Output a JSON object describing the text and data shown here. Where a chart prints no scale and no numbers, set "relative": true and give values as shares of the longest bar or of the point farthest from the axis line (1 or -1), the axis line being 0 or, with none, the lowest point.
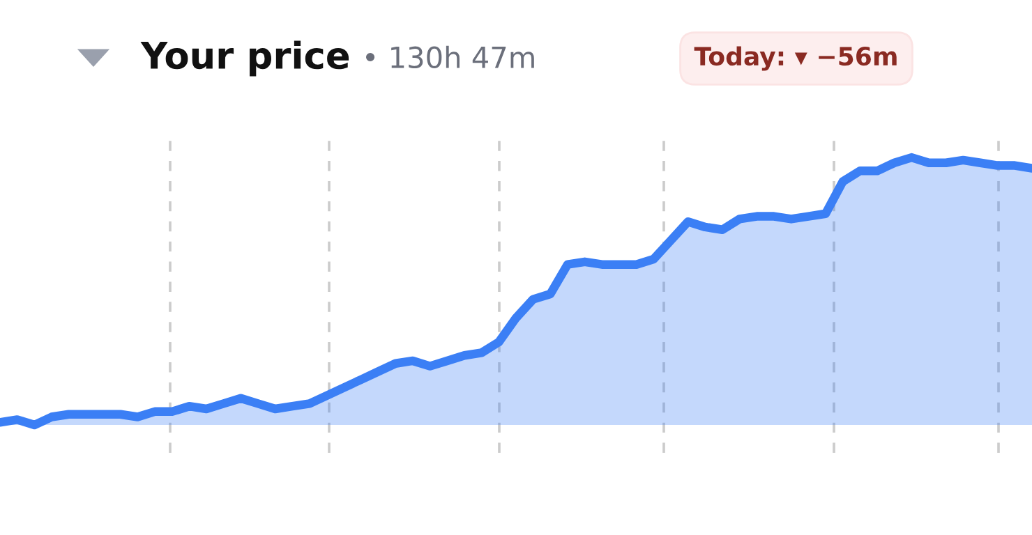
{
  "chart_data": {
    "type": "area",
    "title": "Your price",
    "subtitle": "• 130h 47m",
    "annotations": [
      "Today: ▾ −56m"
    ],
    "relative": true,
    "categories": [
      null,
      null,
      null,
      null,
      null,
      null,
      null,
      null,
      null,
      null,
      null,
      null,
      null,
      null,
      null,
      null,
      null,
      null,
      null,
      null,
      null,
      null,
      null,
      null,
      null,
      null,
      null,
      null,
      null,
      null,
      null,
      null,
      null,
      null,
      null,
      null,
      null,
      null,
      null,
      null,
      null,
      null,
      null,
      null,
      null,
      null,
      null,
      null,
      null,
      null,
      null,
      null,
      null,
      null,
      null,
      null,
      null,
      null,
      null,
      null,
      null
    ],
    "grid": "x",
    "series": [
      {
        "color": "#3b7ff5",
        "values": [
          0.01,
          0.02,
          0,
          0.03,
          0.04,
          0.04,
          0.04,
          0.04,
          0.03,
          0.05,
          0.05,
          0.07,
          0.06,
          0.08,
          0.1,
          0.08,
          0.06,
          0.07,
          0.08,
          0.11,
          0.14,
          0.17,
          0.2,
          0.23,
          0.24,
          0.22,
          0.24,
          0.26,
          0.27,
          0.31,
          0.4,
          0.47,
          0.49,
          0.6,
          0.61,
          0.6,
          0.6,
          0.6,
          0.62,
          0.69,
          0.76,
          0.74,
          0.73,
          0.77,
          0.78,
          0.78,
          0.77,
          0.78,
          0.79,
          0.91,
          0.95,
          0.95,
          0.98,
          1,
          0.98,
          0.98,
          0.99,
          0.98,
          0.97,
          0.97,
          0.96
        ]
      }
    ]
  }
}
